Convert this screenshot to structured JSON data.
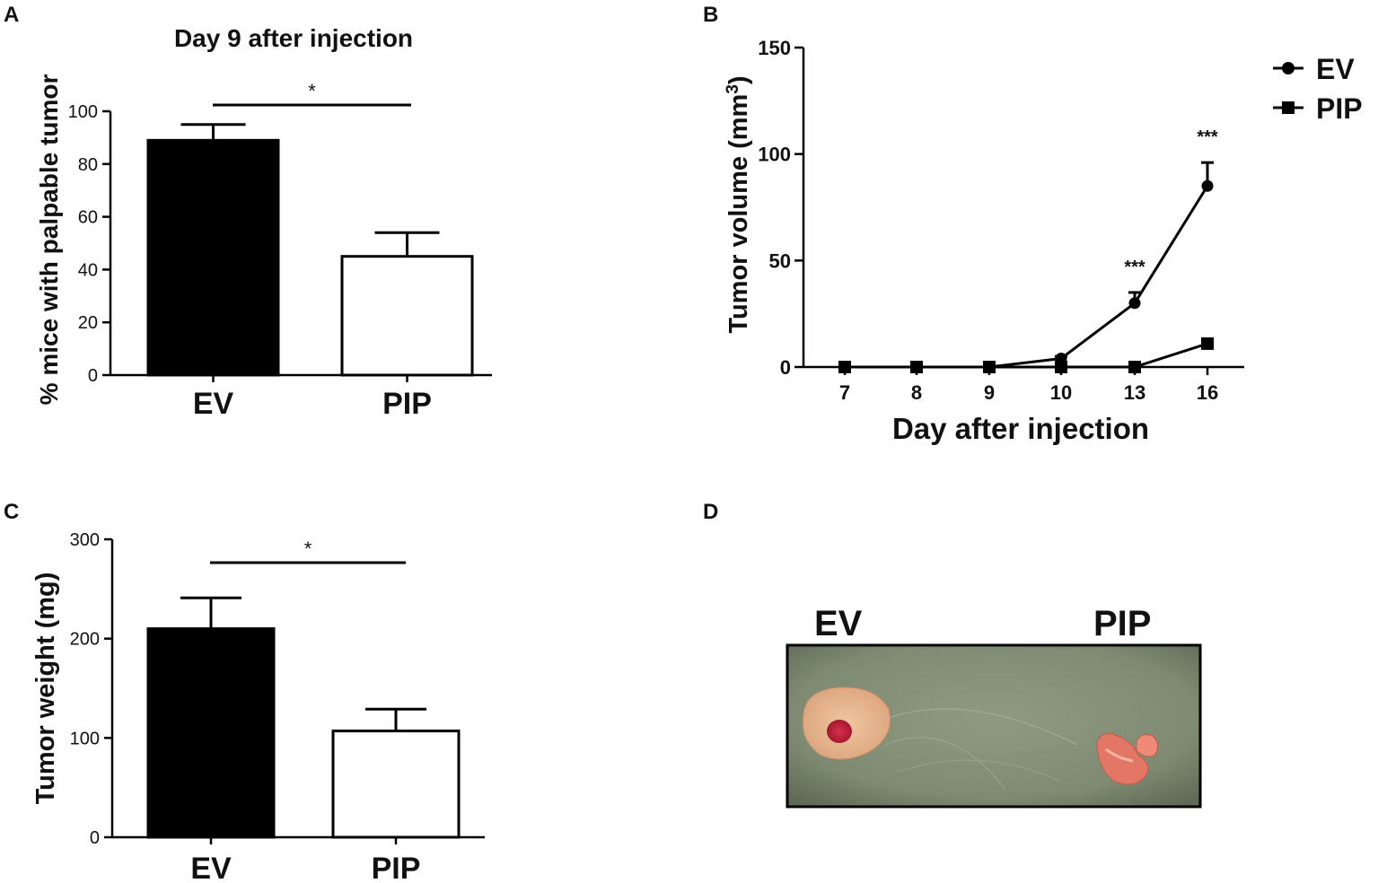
{
  "panel_labels": {
    "a": "A",
    "b": "B",
    "c": "C",
    "d": "D"
  },
  "chart_data": [
    {
      "panel": "A",
      "type": "bar",
      "title": "Day 9 after injection",
      "xlabel": "",
      "ylabel": "% mice with palpable tumor",
      "categories": [
        "EV",
        "PIP"
      ],
      "values": [
        89,
        45
      ],
      "errors": [
        6,
        9
      ],
      "fills": [
        "#000000",
        "#ffffff"
      ],
      "ylim": [
        0,
        100
      ],
      "yticks": [
        0,
        20,
        40,
        60,
        80,
        100
      ],
      "significance": "*"
    },
    {
      "panel": "B",
      "type": "line",
      "title": "",
      "xlabel": "Day after injection",
      "ylabel_main": "Tumor volume (mm",
      "ylabel_sup": "3",
      "ylabel_end": ")",
      "x": [
        "7",
        "8",
        "9",
        "10",
        "13",
        "16"
      ],
      "series": [
        {
          "name": "EV",
          "marker": "circle",
          "values": [
            0,
            0,
            0,
            4,
            30,
            85
          ],
          "errors": [
            0,
            0,
            0,
            1,
            5,
            11
          ]
        },
        {
          "name": "PIP",
          "marker": "square",
          "values": [
            0,
            0,
            0,
            0,
            0,
            11
          ],
          "errors": [
            0,
            0,
            0,
            0,
            0,
            1
          ]
        }
      ],
      "ylim": [
        0,
        150
      ],
      "yticks": [
        0,
        50,
        100,
        150
      ],
      "annotations": [
        {
          "x": "13",
          "text": "***"
        },
        {
          "x": "16",
          "text": "***"
        }
      ],
      "legend_position": "top-right"
    },
    {
      "panel": "C",
      "type": "bar",
      "title": "",
      "xlabel": "",
      "ylabel": "Tumor weight (mg)",
      "categories": [
        "EV",
        "PIP"
      ],
      "values": [
        210,
        107
      ],
      "errors": [
        31,
        22
      ],
      "fills": [
        "#000000",
        "#ffffff"
      ],
      "ylim": [
        0,
        300
      ],
      "yticks": [
        0,
        100,
        200,
        300
      ],
      "significance": "*"
    }
  ],
  "photo": {
    "labels": [
      "EV",
      "PIP"
    ],
    "colors": {
      "background": "#85927a",
      "tissue": "#e7b18a",
      "tumor_core": "#c0203b",
      "pip_tissue": "#e37766"
    }
  }
}
